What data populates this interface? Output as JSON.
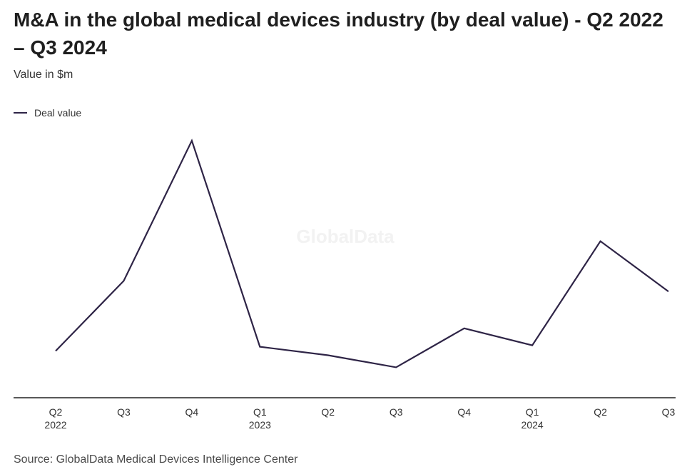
{
  "header": {
    "title": "M&A in the global medical devices industry (by deal value) - Q2 2022 – Q3 2024",
    "subtitle": "Value in $m"
  },
  "legend": {
    "label": "Deal value",
    "color": "#2e2446"
  },
  "watermark": "GlobalData",
  "footer": {
    "source": "Source: GlobalData Medical Devices Intelligence Center"
  },
  "chart_data": {
    "type": "line",
    "title": "M&A in the global medical devices industry (by deal value) - Q2 2022 – Q3 2024",
    "subtitle": "Value in $m",
    "categories": [
      "Q2 2022",
      "Q3 2022",
      "Q4 2022",
      "Q1 2023",
      "Q2 2023",
      "Q3 2023",
      "Q4 2023",
      "Q1 2024",
      "Q2 2024",
      "Q3 2024"
    ],
    "tick_labels": [
      {
        "quarter": "Q2",
        "year": "2022"
      },
      {
        "quarter": "Q3",
        "year": ""
      },
      {
        "quarter": "Q4",
        "year": ""
      },
      {
        "quarter": "Q1",
        "year": "2023"
      },
      {
        "quarter": "Q2",
        "year": ""
      },
      {
        "quarter": "Q3",
        "year": ""
      },
      {
        "quarter": "Q4",
        "year": ""
      },
      {
        "quarter": "Q1",
        "year": "2024"
      },
      {
        "quarter": "Q2",
        "year": ""
      },
      {
        "quarter": "Q3",
        "year": ""
      }
    ],
    "series": [
      {
        "name": "Deal value",
        "color": "#2e2446",
        "values": [
          6600,
          16500,
          36300,
          7200,
          6000,
          4300,
          9800,
          7400,
          22100,
          15000
        ]
      }
    ],
    "ylim": [
      0,
      36300
    ],
    "y_axis_shown": false,
    "grid": false,
    "legend_position": "top-left"
  }
}
